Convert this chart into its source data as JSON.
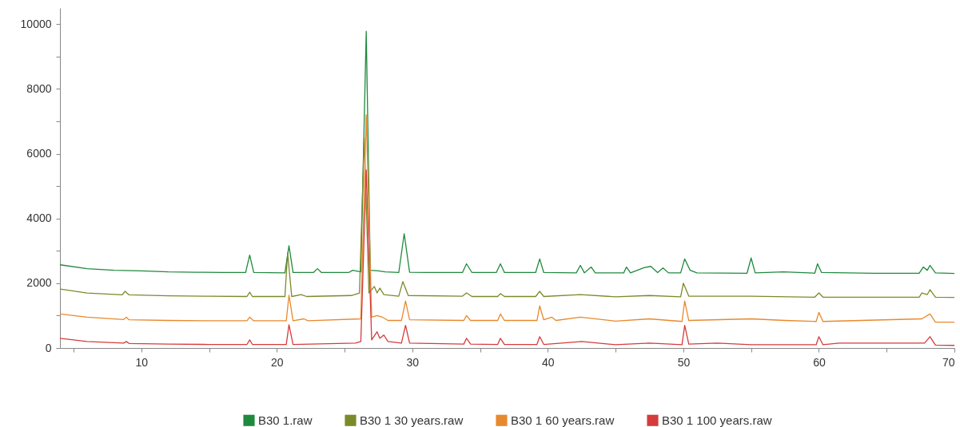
{
  "chart_data": {
    "type": "line",
    "legend": "bottom",
    "grid": false,
    "xlim": [
      4,
      70
    ],
    "ylim": [
      0,
      10500
    ],
    "xticks": [
      {
        "value": 5,
        "label": null
      },
      10,
      {
        "value": 15,
        "label": null
      },
      20,
      {
        "value": 25,
        "label": null
      },
      30,
      {
        "value": 35,
        "label": null
      },
      40,
      {
        "value": 45,
        "label": null
      },
      50,
      {
        "value": 55,
        "label": null
      },
      60,
      {
        "value": 65,
        "label": null
      },
      70
    ],
    "yticks": [
      0,
      {
        "value": 1000,
        "label": null
      },
      2000,
      {
        "value": 3000,
        "label": null
      },
      4000,
      {
        "value": 5000,
        "label": null
      },
      6000,
      {
        "value": 7000,
        "label": null
      },
      8000,
      {
        "value": 9000,
        "label": null
      },
      10000
    ],
    "series": [
      {
        "name": "B30 1.raw",
        "color": "#1f8a3c",
        "x": [
          4,
          6,
          8,
          10,
          12,
          14,
          16,
          17.7,
          18.0,
          18.3,
          20.6,
          20.9,
          21.2,
          22.7,
          23.0,
          23.3,
          25.3,
          25.6,
          26.2,
          26.6,
          26.9,
          27.5,
          28.0,
          29.0,
          29.4,
          29.8,
          31.0,
          33.7,
          34.0,
          34.4,
          36.2,
          36.5,
          36.8,
          39.1,
          39.4,
          39.7,
          42.1,
          42.4,
          42.7,
          43.2,
          43.5,
          45.6,
          45.8,
          46.1,
          47.1,
          47.6,
          48.1,
          48.5,
          48.9,
          49.8,
          50.1,
          50.5,
          51,
          54.7,
          55.0,
          55.3,
          57.4,
          59.7,
          59.9,
          60.2,
          64,
          67.4,
          67.7,
          68.0,
          68.2,
          68.6,
          70
        ],
        "values": [
          2570,
          2450,
          2400,
          2380,
          2350,
          2340,
          2330,
          2330,
          2870,
          2330,
          2320,
          3160,
          2330,
          2330,
          2450,
          2330,
          2330,
          2400,
          2350,
          9780,
          2400,
          2380,
          2350,
          2330,
          3530,
          2340,
          2330,
          2330,
          2600,
          2330,
          2330,
          2600,
          2330,
          2330,
          2750,
          2330,
          2320,
          2550,
          2320,
          2500,
          2320,
          2320,
          2500,
          2320,
          2480,
          2520,
          2330,
          2470,
          2320,
          2320,
          2750,
          2400,
          2320,
          2310,
          2780,
          2320,
          2350,
          2310,
          2600,
          2330,
          2310,
          2310,
          2500,
          2400,
          2550,
          2320,
          2300
        ]
      },
      {
        "name": "B30 1 30 years.raw",
        "color": "#7c8a2a",
        "x": [
          4,
          6,
          8.6,
          8.8,
          9.1,
          12,
          15,
          17.8,
          18.0,
          18.2,
          20.6,
          20.8,
          21.1,
          21.8,
          22.2,
          25.5,
          26.1,
          26.45,
          26.8,
          27.2,
          27.4,
          27.6,
          27.9,
          29.0,
          29.3,
          29.7,
          33.7,
          34.0,
          34.4,
          36.3,
          36.5,
          36.8,
          39.1,
          39.4,
          39.7,
          42.4,
          45,
          47.5,
          49.8,
          50.0,
          50.4,
          55.0,
          59.7,
          60.0,
          60.3,
          67.4,
          67.6,
          68.0,
          68.2,
          68.6,
          70
        ],
        "values": [
          1820,
          1700,
          1640,
          1750,
          1640,
          1610,
          1600,
          1590,
          1720,
          1590,
          1590,
          2940,
          1590,
          1650,
          1590,
          1620,
          1700,
          6500,
          1700,
          1900,
          1700,
          1850,
          1650,
          1600,
          2050,
          1620,
          1600,
          1700,
          1590,
          1590,
          1680,
          1590,
          1590,
          1750,
          1590,
          1650,
          1580,
          1620,
          1580,
          2000,
          1600,
          1600,
          1570,
          1700,
          1570,
          1570,
          1700,
          1650,
          1800,
          1570,
          1560
        ]
      },
      {
        "name": "B30 1 60 years.raw",
        "color": "#e8892e",
        "x": [
          4,
          6,
          8.7,
          8.9,
          9.1,
          12,
          15,
          17.8,
          18.0,
          18.3,
          20.7,
          20.9,
          21.2,
          22.0,
          22.3,
          26.2,
          26.6,
          27.0,
          27.4,
          27.8,
          28.2,
          29.2,
          29.5,
          29.8,
          33.8,
          34.0,
          34.3,
          36.3,
          36.5,
          36.8,
          39.2,
          39.4,
          39.7,
          40.3,
          40.6,
          42.4,
          45,
          47.5,
          49.9,
          50.1,
          50.4,
          55.0,
          57.5,
          59.8,
          60.0,
          60.3,
          67.6,
          68.2,
          68.6,
          70
        ],
        "values": [
          1050,
          950,
          880,
          950,
          870,
          850,
          840,
          840,
          950,
          840,
          840,
          1630,
          840,
          900,
          840,
          900,
          7200,
          950,
          1000,
          950,
          850,
          850,
          1450,
          870,
          850,
          1000,
          850,
          850,
          1050,
          850,
          850,
          1300,
          870,
          950,
          850,
          950,
          830,
          900,
          820,
          1450,
          850,
          900,
          850,
          820,
          1100,
          820,
          900,
          1050,
          800,
          800
        ]
      },
      {
        "name": "B30 1 100 years.raw",
        "color": "#d63b3b",
        "x": [
          4,
          6,
          8.7,
          8.9,
          9.1,
          12,
          15,
          17.8,
          18.0,
          18.2,
          20.7,
          20.9,
          21.2,
          25.8,
          26.2,
          26.6,
          27.0,
          27.4,
          27.6,
          27.9,
          28.2,
          29.2,
          29.5,
          29.8,
          33.8,
          34.0,
          34.3,
          36.3,
          36.5,
          36.8,
          39.2,
          39.4,
          39.7,
          42.5,
          45,
          47.5,
          49.9,
          50.1,
          50.4,
          52.5,
          55,
          59.8,
          60.0,
          60.3,
          61.5,
          67.8,
          68.2,
          68.6,
          70
        ],
        "values": [
          300,
          200,
          150,
          200,
          140,
          120,
          110,
          110,
          250,
          110,
          110,
          720,
          110,
          150,
          200,
          5500,
          250,
          500,
          300,
          400,
          200,
          150,
          700,
          150,
          120,
          300,
          120,
          110,
          300,
          110,
          110,
          350,
          110,
          200,
          100,
          150,
          100,
          700,
          120,
          150,
          100,
          100,
          350,
          100,
          150,
          150,
          350,
          90,
          80
        ]
      }
    ]
  }
}
